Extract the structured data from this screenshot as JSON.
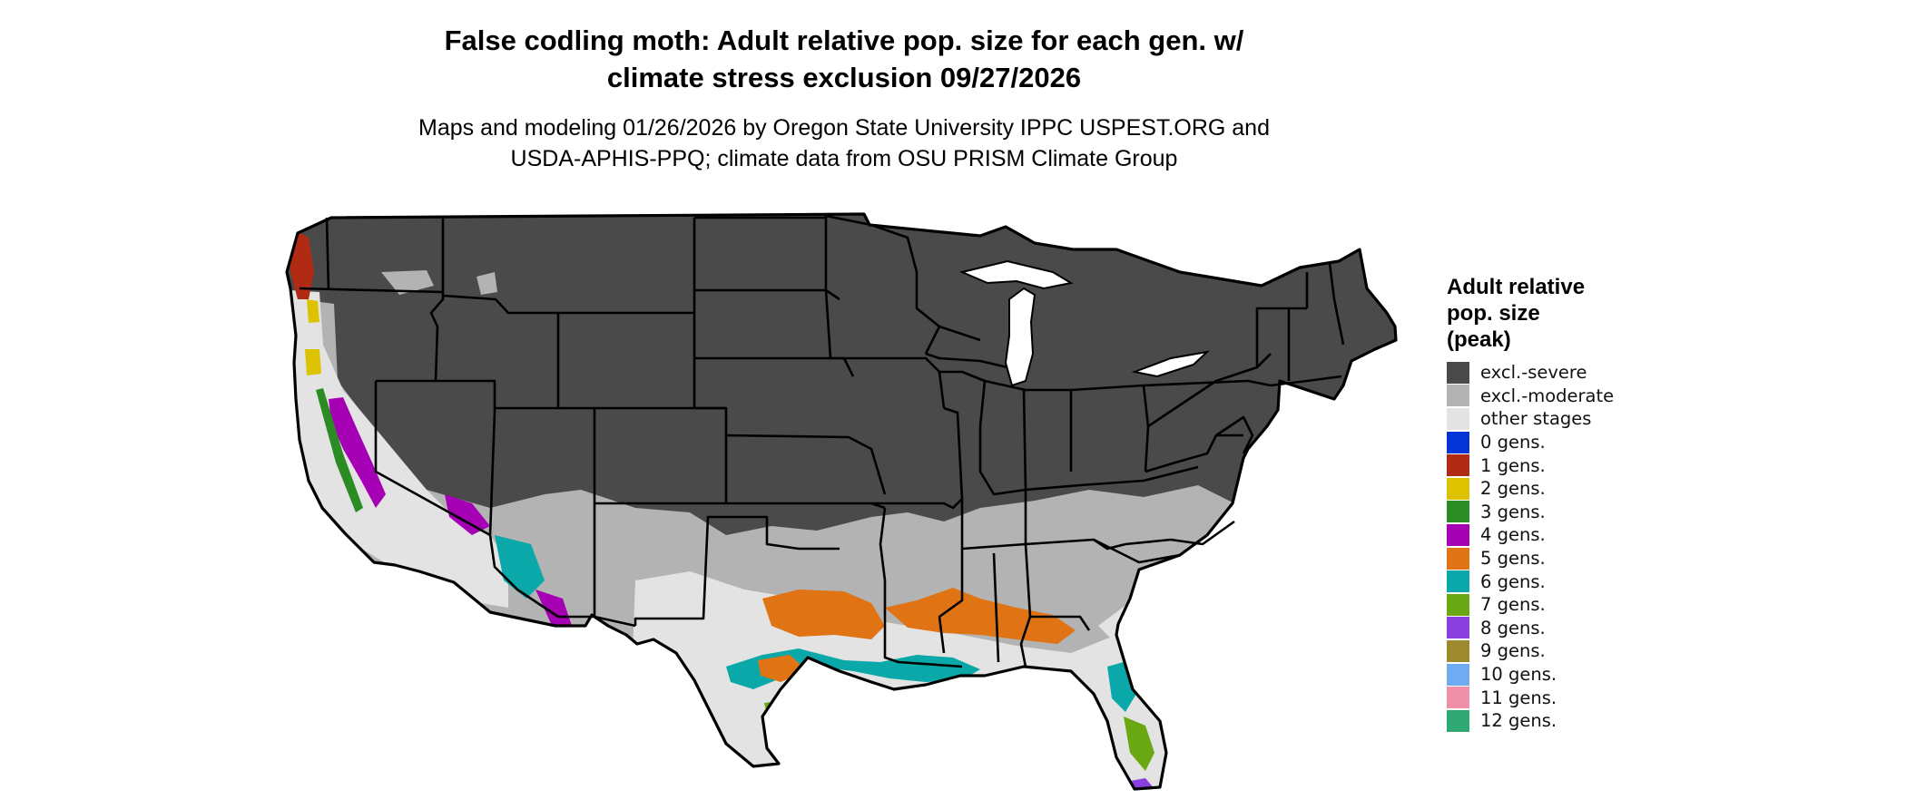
{
  "title": {
    "line1": "False codling moth: Adult relative pop. size for each gen. w/",
    "line2": "climate stress exclusion 09/27/2026"
  },
  "subtitle": {
    "line1": "Maps and modeling 01/26/2026 by Oregon State University IPPC USPEST.ORG and",
    "line2": "USDA-APHIS-PPQ; climate data from OSU PRISM Climate Group"
  },
  "legend": {
    "title_lines": [
      "Adult relative",
      "pop. size",
      "(peak)"
    ],
    "items": [
      {
        "label": "excl.-severe",
        "color": "#4a4a4a"
      },
      {
        "label": "excl.-moderate",
        "color": "#b3b3b3"
      },
      {
        "label": "other stages",
        "color": "#e3e3e3"
      },
      {
        "label": "0 gens.",
        "color": "#0433d6"
      },
      {
        "label": "1 gens.",
        "color": "#b02a14"
      },
      {
        "label": "2 gens.",
        "color": "#dcc200"
      },
      {
        "label": "3 gens.",
        "color": "#2b8c24"
      },
      {
        "label": "4 gens.",
        "color": "#a500b3"
      },
      {
        "label": "5 gens.",
        "color": "#e07415"
      },
      {
        "label": "6 gens.",
        "color": "#0aa8a8"
      },
      {
        "label": "7 gens.",
        "color": "#6aa813"
      },
      {
        "label": "8 gens.",
        "color": "#8a3fe0"
      },
      {
        "label": "9 gens.",
        "color": "#9e8a2e"
      },
      {
        "label": "10 gens.",
        "color": "#70aaf0"
      },
      {
        "label": "11 gens.",
        "color": "#f08fa8"
      },
      {
        "label": "12 gens.",
        "color": "#30a873"
      }
    ]
  }
}
